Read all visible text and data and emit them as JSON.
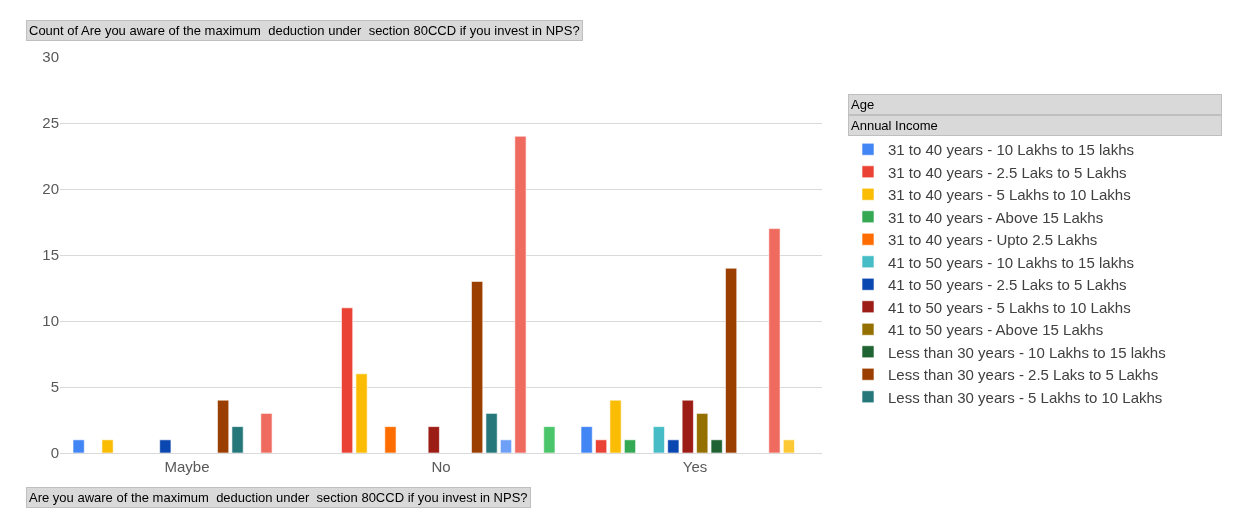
{
  "chart_data": {
    "type": "bar",
    "title": "Count of Are you aware of the maximum  deduction under  section 80CCD if you invest in NPS?",
    "xlabel": "Are you aware of the maximum  deduction under  section 80CCD if you invest in NPS?",
    "legend_title": "Age",
    "annotations": [
      "Annual Income"
    ],
    "categories": [
      "Maybe",
      "No",
      "Yes"
    ],
    "series": [
      {
        "name": "31 to 40 years - 10 Lakhs to 15 lakhs",
        "color": "#4285f4",
        "values": [
          1,
          null,
          2
        ]
      },
      {
        "name": "31 to 40 years - 2.5 Laks to 5 Lakhs",
        "color": "#ea4335",
        "values": [
          null,
          11,
          1
        ]
      },
      {
        "name": "31 to 40 years - 5 Lakhs to 10 Lakhs",
        "color": "#fbbc04",
        "values": [
          1,
          6,
          4
        ]
      },
      {
        "name": "31 to 40 years - Above 15 Lakhs",
        "color": "#34a853",
        "values": [
          null,
          null,
          1
        ]
      },
      {
        "name": "31 to 40 years - Upto 2.5 Lakhs",
        "color": "#ff6d01",
        "values": [
          null,
          2,
          null
        ]
      },
      {
        "name": "41 to 50 years - 10 Lakhs to 15 lakhs",
        "color": "#46bdc6",
        "values": [
          null,
          null,
          2
        ]
      },
      {
        "name": "41 to 50 years - 2.5 Laks to 5 Lakhs",
        "color": "#0b47b0",
        "values": [
          1,
          null,
          1
        ]
      },
      {
        "name": "41 to 50 years - 5 Lakhs to 10 Lakhs",
        "color": "#9c1c16",
        "values": [
          null,
          2,
          4
        ]
      },
      {
        "name": "41 to 50 years - Above 15 Lakhs",
        "color": "#937000",
        "values": [
          null,
          null,
          3
        ]
      },
      {
        "name": "Less than 30 years - 10 Lakhs to 15 lakhs",
        "color": "#1e6331",
        "values": [
          null,
          null,
          1
        ]
      },
      {
        "name": "Less than 30 years - 2.5 Laks to 5 Lakhs",
        "color": "#9b3f00",
        "values": [
          4,
          13,
          14
        ]
      },
      {
        "name": "Less than 30 years - 5 Lakhs to 10 Lakhs",
        "color": "#26777a",
        "values": [
          2,
          3,
          null
        ]
      },
      {
        "color": "#6fa0f7",
        "values": [
          null,
          1,
          null
        ]
      },
      {
        "color": "#ef6b5f",
        "values": [
          3,
          24,
          17
        ]
      },
      {
        "color": "#fcc934",
        "values": [
          null,
          null,
          1
        ]
      },
      {
        "color": "#4ac56a",
        "values": [
          null,
          2,
          null
        ]
      }
    ],
    "ylim": [
      0,
      30
    ],
    "yticks": [
      0,
      5,
      10,
      15,
      20,
      25,
      30
    ],
    "grid": "y",
    "legend": "right"
  }
}
